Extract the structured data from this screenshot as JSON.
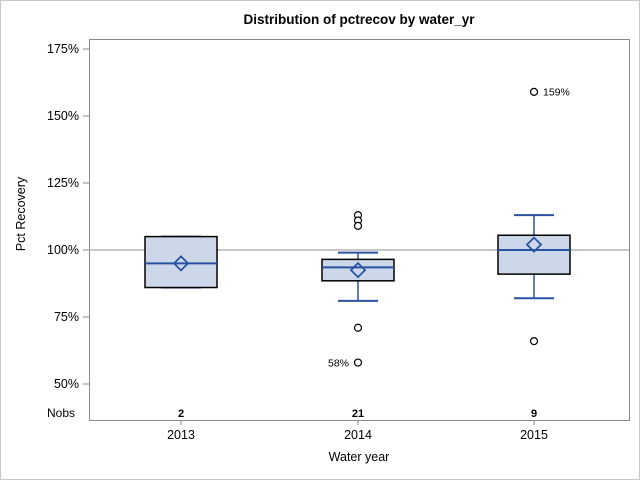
{
  "chart_data": {
    "type": "box",
    "title": "Distribution of pctrecov by water_yr",
    "xlabel": "Water year",
    "ylabel": "Pct Recovery",
    "nobs_label": "Nobs",
    "categories": [
      "2013",
      "2014",
      "2015"
    ],
    "nobs": [
      2,
      21,
      9
    ],
    "y_ticks": [
      175,
      150,
      125,
      100,
      75,
      50
    ],
    "y_tick_suffix": "%",
    "ylim": [
      37,
      179
    ],
    "reference_line": 100,
    "grid": false,
    "legend": "none",
    "series": [
      {
        "category": "2013",
        "n": 2,
        "whisker_low": 86,
        "q1": 86,
        "median": 95,
        "mean": 95,
        "q3": 105,
        "whisker_high": 105,
        "outliers": []
      },
      {
        "category": "2014",
        "n": 21,
        "whisker_low": 81,
        "q1": 88.5,
        "median": 93.5,
        "mean": 92.5,
        "q3": 96.5,
        "whisker_high": 99,
        "outliers": [
          {
            "value": 113
          },
          {
            "value": 111
          },
          {
            "value": 109
          },
          {
            "value": 71
          },
          {
            "value": 58,
            "label": "58%",
            "label_side": "left"
          }
        ]
      },
      {
        "category": "2015",
        "n": 9,
        "whisker_low": 82,
        "q1": 91,
        "median": 100,
        "mean": 102,
        "q3": 105.5,
        "whisker_high": 113,
        "outliers": [
          {
            "value": 159,
            "label": "159%",
            "label_side": "right"
          },
          {
            "value": 66
          }
        ]
      }
    ],
    "colors": {
      "box_fill": "#ccd7e9",
      "box_border": "#000000",
      "line": "#2a52a2",
      "reference_line": "#a8a8a8",
      "axis": "#8a8a8a",
      "text": "#000000",
      "outlier_stroke": "#000000",
      "outlier_fill": "#ffffff",
      "frame_border": "#c8c8c8",
      "background": "#ffffff"
    }
  }
}
